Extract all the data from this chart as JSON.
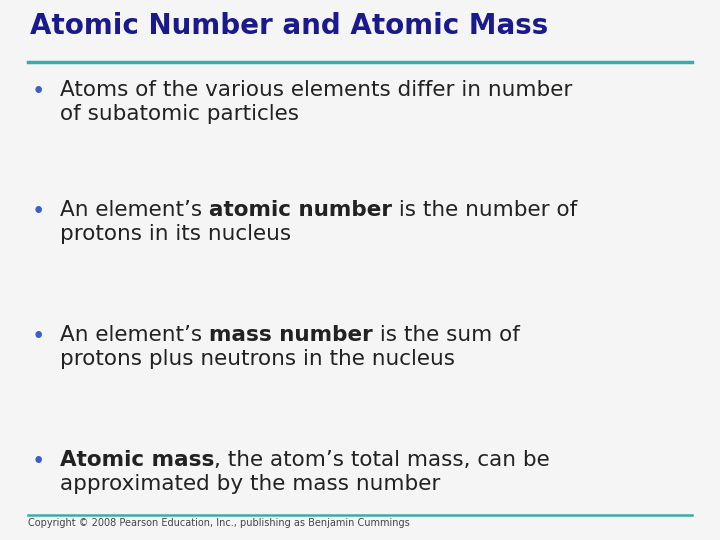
{
  "title": "Atomic Number and Atomic Mass",
  "title_color": "#1a1a8c",
  "title_fontsize": 20,
  "separator_color": "#3aadaa",
  "background_color": "#f5f5f5",
  "bullet_color": "#3a5fcd",
  "bullet_char": "•",
  "text_color": "#222222",
  "body_fontsize": 15.5,
  "copyright_text": "Copyright © 2008 Pearson Education, Inc., publishing as Benjamin Cummings",
  "copyright_fontsize": 7,
  "copyright_color": "#444444",
  "bullets": [
    {
      "segments": [
        {
          "text": "Atoms of the various elements differ in number\nof subatomic particles",
          "bold": false
        }
      ]
    },
    {
      "segments": [
        {
          "text": "An element’s ",
          "bold": false
        },
        {
          "text": "atomic number",
          "bold": true
        },
        {
          "text": " is the number of\nprotons in its nucleus",
          "bold": false
        }
      ]
    },
    {
      "segments": [
        {
          "text": "An element’s ",
          "bold": false
        },
        {
          "text": "mass number",
          "bold": true
        },
        {
          "text": " is the sum of\nprotons plus neutrons in the nucleus",
          "bold": false
        }
      ]
    },
    {
      "segments": [
        {
          "text": "Atomic mass",
          "bold": true
        },
        {
          "text": ", the atom’s total mass, can be\napproximated by the mass number",
          "bold": false
        }
      ]
    }
  ]
}
